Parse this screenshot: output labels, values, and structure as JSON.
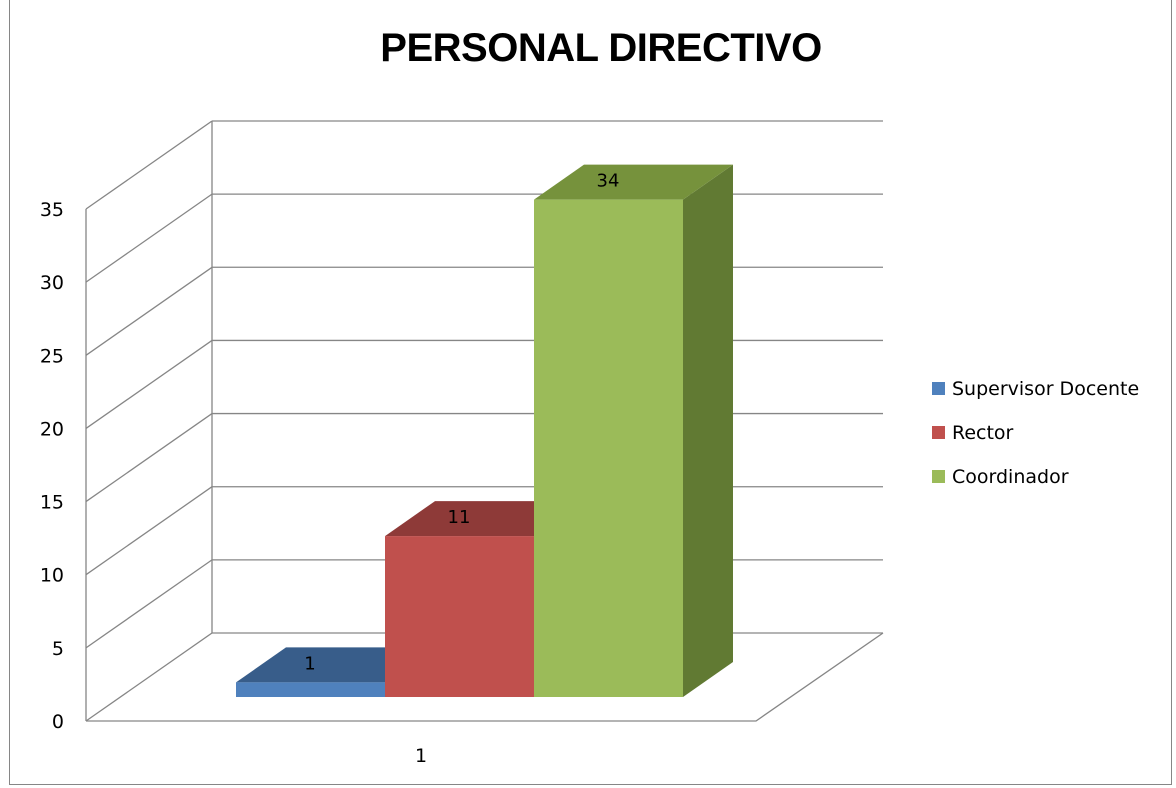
{
  "chart_data": {
    "type": "bar",
    "title": "PERSONAL DIRECTIVO",
    "categories": [
      "1"
    ],
    "series": [
      {
        "name": "Supervisor Docente",
        "values": [
          1
        ],
        "color": "#4F81BD",
        "top_color": "#385D8A",
        "side_color": "#2E4C72"
      },
      {
        "name": "Rector",
        "values": [
          11
        ],
        "color": "#C0504D",
        "top_color": "#8E3A38",
        "side_color": "#7A2F2D"
      },
      {
        "name": "Coordinador",
        "values": [
          34
        ],
        "color": "#9BBB59",
        "top_color": "#76923C",
        "side_color": "#617A33"
      }
    ],
    "data_labels": [
      "1",
      "11",
      "34"
    ],
    "yticks": [
      "0",
      "5",
      "10",
      "15",
      "20",
      "25",
      "30",
      "35"
    ],
    "ylim": [
      0,
      35
    ],
    "grid": true,
    "legend": "right",
    "style": "3d-clustered-column"
  }
}
